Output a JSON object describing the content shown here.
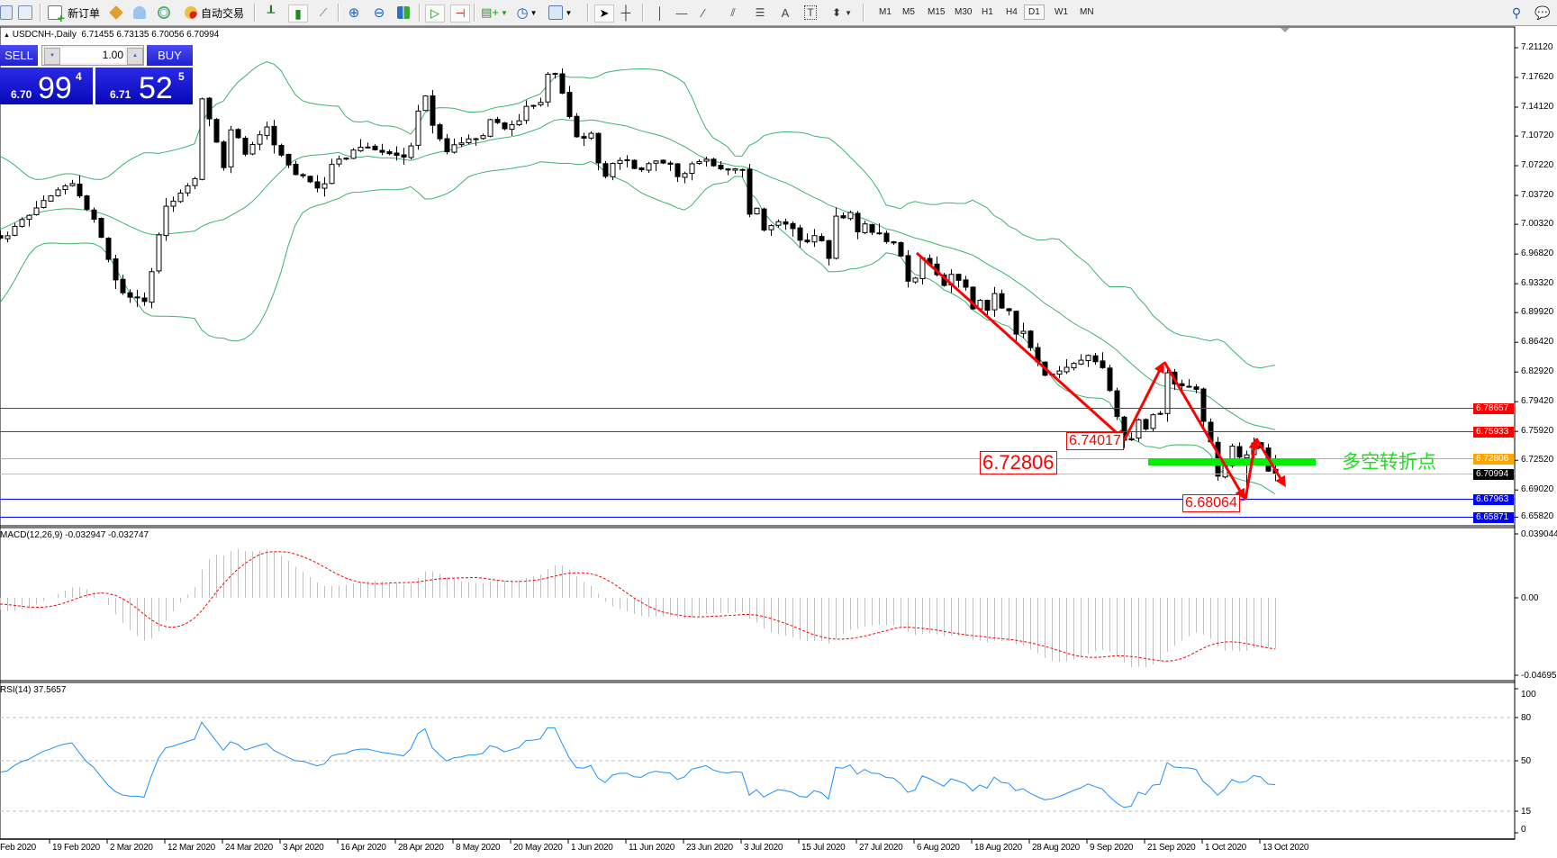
{
  "toolbar": {
    "new_order": "新订单",
    "auto_trading": "自动交易",
    "timeframes": [
      "M1",
      "M5",
      "M15",
      "M30",
      "H1",
      "H4",
      "D1",
      "W1",
      "MN"
    ],
    "active_timeframe": "D1"
  },
  "chart": {
    "symbol_period": "USDCNH-,Daily",
    "ohlc": "6.71455 6.73135 6.70056 6.70994",
    "last_bar": {
      "open": 6.71455,
      "high": 6.73135,
      "low": 6.70056,
      "close": 6.70994
    },
    "colors": {
      "bollinger": "#3cb371",
      "bull_body": "#ffffff",
      "bear_body": "#000000",
      "trend_arrows": "#ff0000",
      "pivot_zone": "#00ee00"
    }
  },
  "one_click": {
    "sell": "SELL",
    "buy": "BUY",
    "lot": "1.00",
    "bid_prefix": "6.70",
    "bid_big": "99",
    "bid_sup": "4",
    "ask_prefix": "6.71",
    "ask_big": "52",
    "ask_sup": "5"
  },
  "price_axis": [
    "7.21120",
    "7.17620",
    "7.14120",
    "7.10720",
    "7.07220",
    "7.03720",
    "7.00320",
    "6.96820",
    "6.93320",
    "6.89920",
    "6.86420",
    "6.82920",
    "6.79420",
    "6.75920",
    "6.72520",
    "6.69020",
    "6.65820"
  ],
  "hlines": [
    {
      "price": "6.78657",
      "color": "#ff0000",
      "text_color": "#ffffff"
    },
    {
      "price": "6.75933",
      "color": "#ff0000",
      "text_color": "#ffffff"
    },
    {
      "price": "6.72806",
      "color": "#ffa500",
      "text_color": "#ffffff"
    },
    {
      "price": "6.70994",
      "color": "#c0c0c0",
      "tag_color": "#000000",
      "text_color": "#ffffff"
    },
    {
      "price": "6.67963",
      "color": "#0000ff",
      "text_color": "#ffffff"
    },
    {
      "price": "6.65871",
      "color": "#0000ff",
      "text_color": "#ffffff"
    }
  ],
  "annotations": {
    "label_1": "6.72806",
    "label_2": "6.74017",
    "label_3": "6.68064",
    "pivot_text": "多空转折点"
  },
  "macd": {
    "label": "MACD(12,26,9) -0.032947 -0.032747",
    "axis": [
      "0.039044",
      "0.00",
      "-0.046959"
    ],
    "colors": {
      "histogram": "#c0c0c0",
      "signal": "#ff0000"
    }
  },
  "rsi": {
    "label": "RSI(14) 37.5657",
    "axis": [
      "100",
      "80",
      "50",
      "15",
      "0"
    ],
    "color": "#1e90ff"
  },
  "time_axis": [
    "Feb 2020",
    "19 Feb 2020",
    "2 Mar 2020",
    "12 Mar 2020",
    "24 Mar 2020",
    "3 Apr 2020",
    "16 Apr 2020",
    "28 Apr 2020",
    "8 May 2020",
    "20 May 2020",
    "1 Jun 2020",
    "11 Jun 2020",
    "23 Jun 2020",
    "3 Jul 2020",
    "15 Jul 2020",
    "27 Jul 2020",
    "6 Aug 2020",
    "18 Aug 2020",
    "28 Aug 2020",
    "9 Sep 2020",
    "21 Sep 2020",
    "1 Oct 2020",
    "13 Oct 2020"
  ]
}
